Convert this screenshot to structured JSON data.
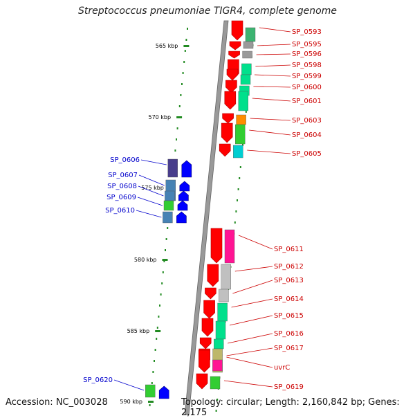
{
  "title": "Streptococcus pneumoniae TIGR4, complete genome",
  "footer": {
    "accession": "Accession: NC_003028",
    "topology": "Topology: circular; Length: 2,160,842 bp; Genes: 2,175"
  },
  "colors": {
    "forward_label": "#cc0000",
    "reverse_label": "#0000cc",
    "forward_gene": "#ff0000",
    "reverse_gene": "#0000ff",
    "tick": "#228b22",
    "backbone": "#888888"
  },
  "scale": {
    "ticks": [
      {
        "label": "565 kbp"
      },
      {
        "label": "570 kbp"
      },
      {
        "label": "575 kbp"
      },
      {
        "label": "580 kbp"
      },
      {
        "label": "585 kbp"
      },
      {
        "label": "590 kbp"
      }
    ]
  },
  "forward_genes": [
    {
      "label": "SP_0593",
      "cog": "#3cb371"
    },
    {
      "label": "SP_0595",
      "cog": "#999999"
    },
    {
      "label": "SP_0596",
      "cog": "#999999"
    },
    {
      "label": "SP_0598",
      "cog": "#00e08c"
    },
    {
      "label": "SP_0599",
      "cog": "#00e08c"
    },
    {
      "label": "SP_0600",
      "cog": "#00e08c"
    },
    {
      "label": "SP_0601",
      "cog": "#00e08c"
    },
    {
      "label": "SP_0603",
      "cog": "#ff8c00"
    },
    {
      "label": "SP_0604",
      "cog": "#32cd32"
    },
    {
      "label": "SP_0605",
      "cog": "#00ced1"
    },
    {
      "label": "SP_0611",
      "cog": "#ff1493"
    },
    {
      "label": "SP_0612",
      "cog": "#c0c0c0"
    },
    {
      "label": "SP_0613",
      "cog": "#c0c0c0"
    },
    {
      "label": "SP_0614",
      "cog": "#00e08c"
    },
    {
      "label": "SP_0615",
      "cog": "#00e08c"
    },
    {
      "label": "SP_0616",
      "cog": "#00e08c"
    },
    {
      "label": "SP_0617",
      "cog": "#bdb76b"
    },
    {
      "label": "uvrC",
      "cog": "#ff1493"
    },
    {
      "label": "SP_0619",
      "cog": "#32cd32"
    }
  ],
  "reverse_genes": [
    {
      "label": "SP_0606",
      "cog": "#483d8b"
    },
    {
      "label": "SP_0607",
      "cog": "#4682b4"
    },
    {
      "label": "SP_0608",
      "cog": "#4682b4"
    },
    {
      "label": "SP_0609",
      "cog": "#32cd32"
    },
    {
      "label": "SP_0610",
      "cog": "#4682b4"
    },
    {
      "label": "SP_0620",
      "cog": "#32cd32"
    }
  ]
}
